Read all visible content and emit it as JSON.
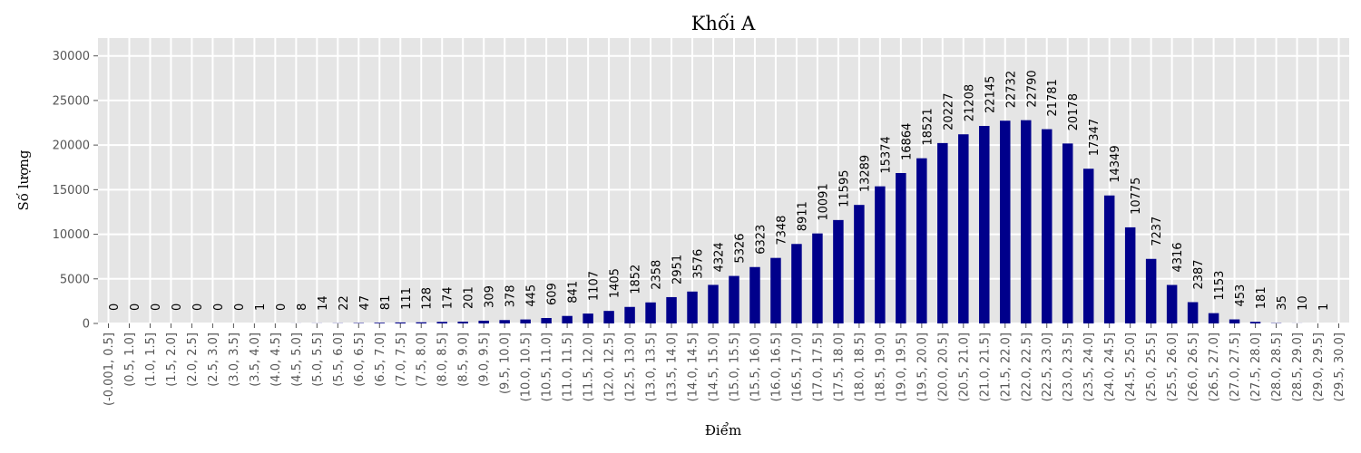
{
  "chart_data": {
    "type": "bar",
    "title": "Khối A",
    "xlabel": "Điểm",
    "ylabel": "Số lượng",
    "ylim": [
      0,
      32000
    ],
    "yticks": [
      0,
      5000,
      10000,
      15000,
      20000,
      25000,
      30000
    ],
    "grid": true,
    "bar_color": "#00008b",
    "background_color": "#e5e5e5",
    "categories": [
      "(-0.001, 0.5]",
      "(0.5, 1.0]",
      "(1.0, 1.5]",
      "(1.5, 2.0]",
      "(2.0, 2.5]",
      "(2.5, 3.0]",
      "(3.0, 3.5]",
      "(3.5, 4.0]",
      "(4.0, 4.5]",
      "(4.5, 5.0]",
      "(5.0, 5.5]",
      "(5.5, 6.0]",
      "(6.0, 6.5]",
      "(6.5, 7.0]",
      "(7.0, 7.5]",
      "(7.5, 8.0]",
      "(8.0, 8.5]",
      "(8.5, 9.0]",
      "(9.0, 9.5]",
      "(9.5, 10.0]",
      "(10.0, 10.5]",
      "(10.5, 11.0]",
      "(11.0, 11.5]",
      "(11.5, 12.0]",
      "(12.0, 12.5]",
      "(12.5, 13.0]",
      "(13.0, 13.5]",
      "(13.5, 14.0]",
      "(14.0, 14.5]",
      "(14.5, 15.0]",
      "(15.0, 15.5]",
      "(15.5, 16.0]",
      "(16.0, 16.5]",
      "(16.5, 17.0]",
      "(17.0, 17.5]",
      "(17.5, 18.0]",
      "(18.0, 18.5]",
      "(18.5, 19.0]",
      "(19.0, 19.5]",
      "(19.5, 20.0]",
      "(20.0, 20.5]",
      "(20.5, 21.0]",
      "(21.0, 21.5]",
      "(21.5, 22.0]",
      "(22.0, 22.5]",
      "(22.5, 23.0]",
      "(23.0, 23.5]",
      "(23.5, 24.0]",
      "(24.0, 24.5]",
      "(24.5, 25.0]",
      "(25.0, 25.5]",
      "(25.5, 26.0]",
      "(26.0, 26.5]",
      "(26.5, 27.0]",
      "(27.0, 27.5]",
      "(27.5, 28.0]",
      "(28.0, 28.5]",
      "(28.5, 29.0]",
      "(29.0, 29.5]",
      "(29.5, 30.0]"
    ],
    "values": [
      0,
      0,
      0,
      0,
      0,
      0,
      0,
      1,
      0,
      8,
      14,
      22,
      47,
      81,
      111,
      128,
      174,
      201,
      309,
      378,
      445,
      609,
      841,
      1107,
      1405,
      1852,
      2358,
      2951,
      3576,
      4324,
      5326,
      6323,
      7348,
      8911,
      10091,
      11595,
      13289,
      15374,
      16864,
      18521,
      20227,
      21208,
      22145,
      22732,
      22790,
      21781,
      20178,
      17347,
      14349,
      10775,
      7237,
      4316,
      2387,
      1153,
      453,
      181,
      35,
      10,
      1,
      0
    ]
  }
}
